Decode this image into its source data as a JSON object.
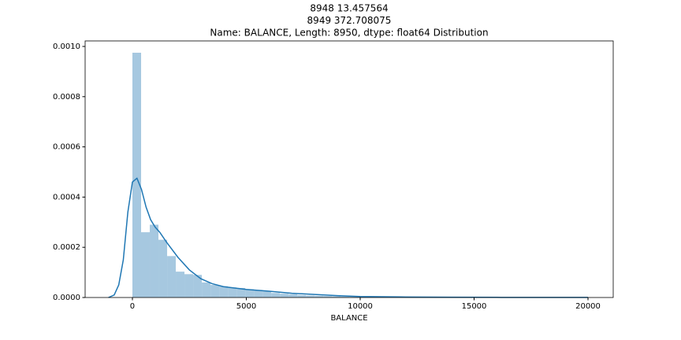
{
  "chart_data": {
    "type": "histogram",
    "title": [
      "8948      13.457564",
      "8949      372.708075",
      "Name: BALANCE, Length: 8950, dtype: float64 Distribution"
    ],
    "xlabel": "BALANCE",
    "bins": [
      0,
      381,
      762,
      1143,
      1524,
      1904,
      2285,
      2666,
      3047,
      3428,
      3809,
      4190,
      4571,
      4951,
      5332,
      5713,
      6094,
      6475,
      6856,
      7237,
      7618,
      7998,
      8379,
      8760,
      9141,
      9522,
      9903,
      10284,
      10665,
      11046,
      11426,
      11807,
      12188,
      12569,
      12950,
      13331,
      13712,
      14093,
      14473,
      14854,
      15235,
      15616,
      15997,
      16378,
      16759,
      17140,
      17521,
      17901,
      18282,
      18663,
      19044
    ],
    "values": [
      0.000975,
      0.00026,
      0.00029,
      0.00023,
      0.000165,
      0.000103,
      9.3e-05,
      9e-05,
      6e-05,
      5e-05,
      4.5e-05,
      4e-05,
      3.8e-05,
      3.3e-05,
      3e-05,
      2.5e-05,
      1.8e-05,
      1.5e-05,
      1.3e-05,
      1e-05,
      8e-06,
      7e-06,
      6e-06,
      5e-06,
      4e-06,
      3e-06,
      2e-06,
      2e-06,
      1.5e-06,
      1e-06,
      1e-06,
      8e-07,
      6e-07,
      5e-07,
      5e-07,
      4e-07,
      4e-07,
      3e-07,
      3e-07,
      3e-07,
      2e-07,
      2e-07,
      2e-07,
      2e-07,
      1e-07,
      1e-07,
      1e-07,
      1e-07,
      1e-07,
      1e-07
    ],
    "color": "#a6c8e0",
    "kde": {
      "color": "#1f77b4",
      "x": [
        -1050,
        -800,
        -600,
        -400,
        -200,
        0,
        200,
        400,
        600,
        800,
        1000,
        1200,
        1500,
        2000,
        2500,
        3000,
        3500,
        4000,
        5000,
        6000,
        7000,
        8000,
        9000,
        10000,
        12000,
        14000,
        16000,
        18000,
        20000
      ],
      "values": [
        0,
        1e-05,
        5e-05,
        0.00015,
        0.00034,
        0.00046,
        0.000475,
        0.00043,
        0.00036,
        0.00031,
        0.00028,
        0.00026,
        0.00022,
        0.00016,
        0.00011,
        7.5e-05,
        5.5e-05,
        4.3e-05,
        3.2e-05,
        2.5e-05,
        1.7e-05,
        1.2e-05,
        7.5e-06,
        4e-06,
        2e-06,
        1e-06,
        6e-07,
        4e-07,
        2e-07
      ]
    },
    "xlim": [
      -2076,
      21107
    ],
    "xticks": [
      0,
      5000,
      10000,
      15000,
      20000
    ],
    "ylim": [
      0,
      0.001022
    ],
    "yticks": [
      {
        "value": 0,
        "label": "0.0000"
      },
      {
        "value": 0.0002,
        "label": "0.0002"
      },
      {
        "value": 0.0004,
        "label": "0.0004"
      },
      {
        "value": 0.0006,
        "label": "0.0006"
      },
      {
        "value": 0.0008,
        "label": "0.0008"
      },
      {
        "value": 0.001,
        "label": "0.0010"
      }
    ]
  }
}
